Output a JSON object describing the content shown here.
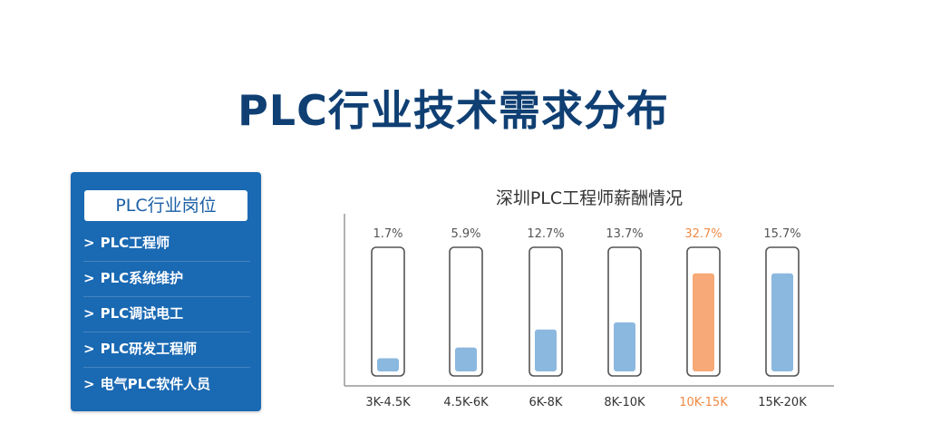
{
  "page": {
    "title": "PLC行业技术需求分布"
  },
  "sidebar": {
    "header": "PLC行业岗位",
    "arrow": ">",
    "items": [
      {
        "label": "PLC工程师"
      },
      {
        "label": "PLC系统维护"
      },
      {
        "label": "PLC调试电工"
      },
      {
        "label": "PLC研发工程师"
      },
      {
        "label": "电气PLC软件人员"
      }
    ]
  },
  "colors": {
    "title": "#0f3f73",
    "panel": "#1a69b3",
    "bar": "#8bb8df",
    "highlight_bar": "#f7a977",
    "highlight_text": "#f08a45",
    "label_text": "#555555",
    "outline": "#555555",
    "axis": "#999999"
  },
  "chart_data": {
    "type": "bar",
    "title": "深圳PLC工程师薪酬情况",
    "categories": [
      "3K-4.5K",
      "4.5K-6K",
      "6K-8K",
      "8K-10K",
      "10K-15K",
      "15K-20K"
    ],
    "value_labels": [
      "1.7%",
      "5.9%",
      "12.7%",
      "13.7%",
      "32.7%",
      "15.7%"
    ],
    "values": [
      1.7,
      5.9,
      12.7,
      13.7,
      32.7,
      15.7
    ],
    "highlight_index": 4,
    "fill_fraction": [
      0.11,
      0.2,
      0.35,
      0.41,
      0.82,
      0.82
    ],
    "xlabel": "",
    "ylabel": "",
    "grid": false,
    "legend": "none"
  }
}
